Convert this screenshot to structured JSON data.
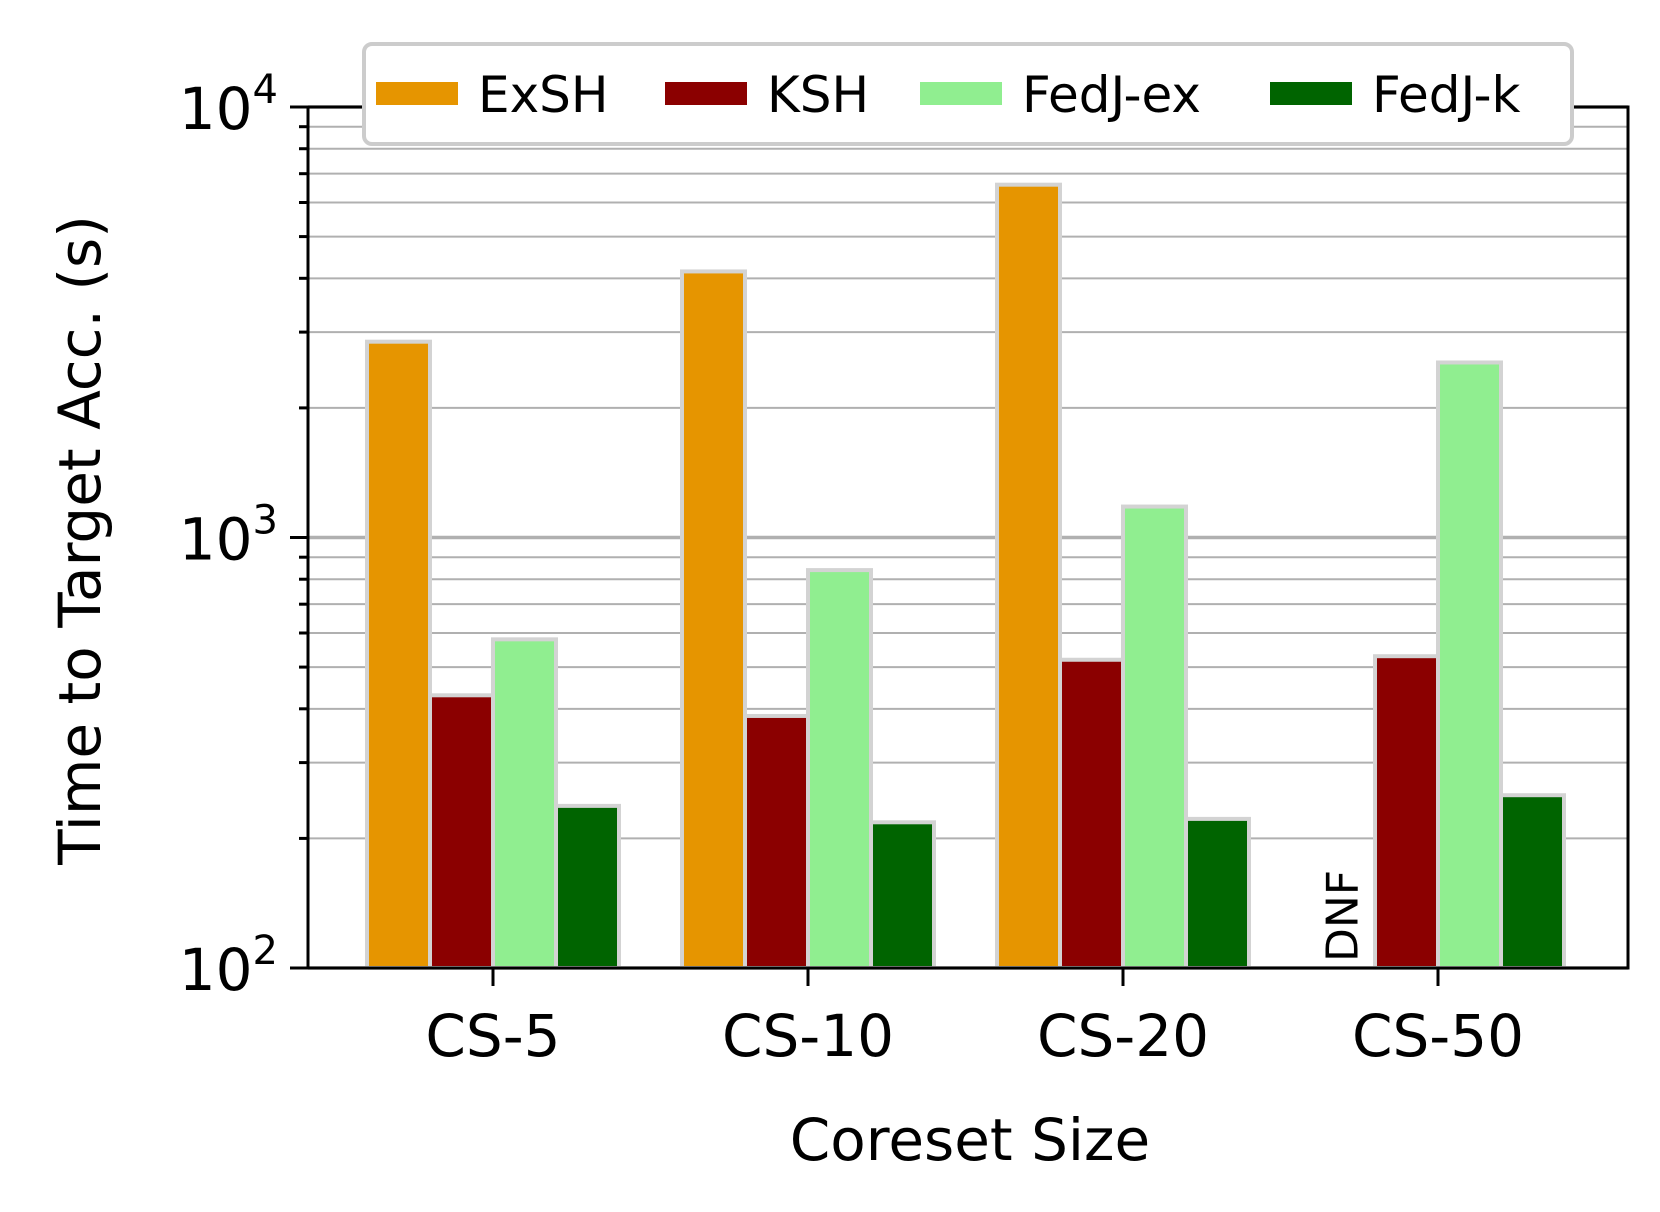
{
  "chart_data": {
    "type": "bar",
    "title": "",
    "xlabel": "Coreset Size",
    "ylabel": "Time to Target Acc. (s)",
    "yscale": "log",
    "ylim": [
      100,
      10000
    ],
    "grid": "y-major-and-minor",
    "legend_position": "top",
    "categories": [
      "CS-5",
      "CS-10",
      "CS-20",
      "CS-50"
    ],
    "y_ticks": [
      {
        "base": "10",
        "exp": "2",
        "value": 100
      },
      {
        "base": "10",
        "exp": "3",
        "value": 1000
      },
      {
        "base": "10",
        "exp": "4",
        "value": 10000
      }
    ],
    "series": [
      {
        "name": "ExSH",
        "color": "#E69500",
        "values": [
          2850,
          4150,
          6600,
          null
        ]
      },
      {
        "name": "KSH",
        "color": "#8B0000",
        "values": [
          430,
          385,
          520,
          530
        ]
      },
      {
        "name": "FedJ-ex",
        "color": "#90EE90",
        "values": [
          580,
          840,
          1180,
          2550
        ]
      },
      {
        "name": "FedJ-k",
        "color": "#006400",
        "values": [
          238,
          218,
          222,
          252
        ]
      }
    ],
    "annotations": [
      {
        "text": "DNF",
        "category": "CS-50",
        "series": "ExSH"
      }
    ]
  }
}
